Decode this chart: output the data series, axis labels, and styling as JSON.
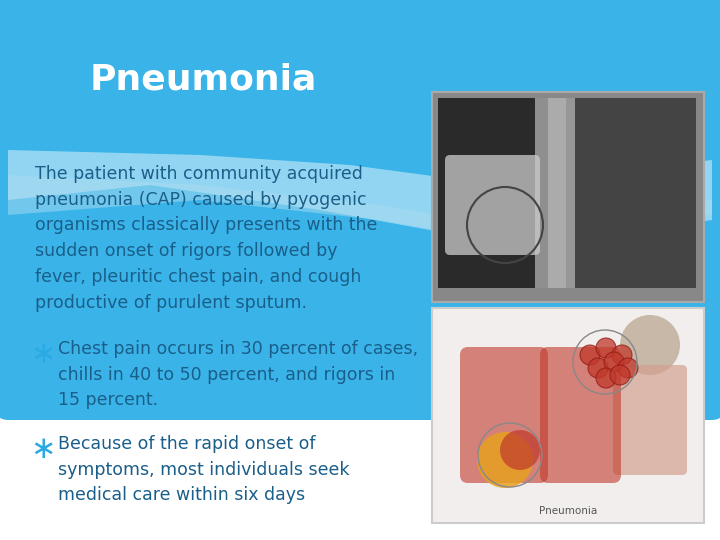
{
  "title": "Pneumonia",
  "title_color": "#ffffff",
  "title_bg_color": "#29aae2",
  "slide_bg_color": "#ffffff",
  "body_text_color": "#1a5e8a",
  "bullet_color": "#29aae2",
  "main_text": "The patient with community acquired\npneumonia (CAP) caused by pyogenic\norganisms classically presents with the\nsudden onset of rigors followed by\nfever, pleuritic chest pain, and cough\nproductive of purulent sputum.",
  "bullet1": "Chest pain occurs in 30 percent of cases,\nchills in 40 to 50 percent, and rigors in\n15 percent.",
  "bullet2": "Because of the rapid onset of\nsymptoms, most individuals seek\nmedical care within six days",
  "title_fontsize": 26,
  "body_fontsize": 12.5,
  "bullet_fontsize": 12.5,
  "blue_bg_color": "#3ab4e8",
  "blue_bg_color2": "#5cc8f0",
  "white_wave_color": "#b8e4f5",
  "light_blue_color": "#7dcef5"
}
